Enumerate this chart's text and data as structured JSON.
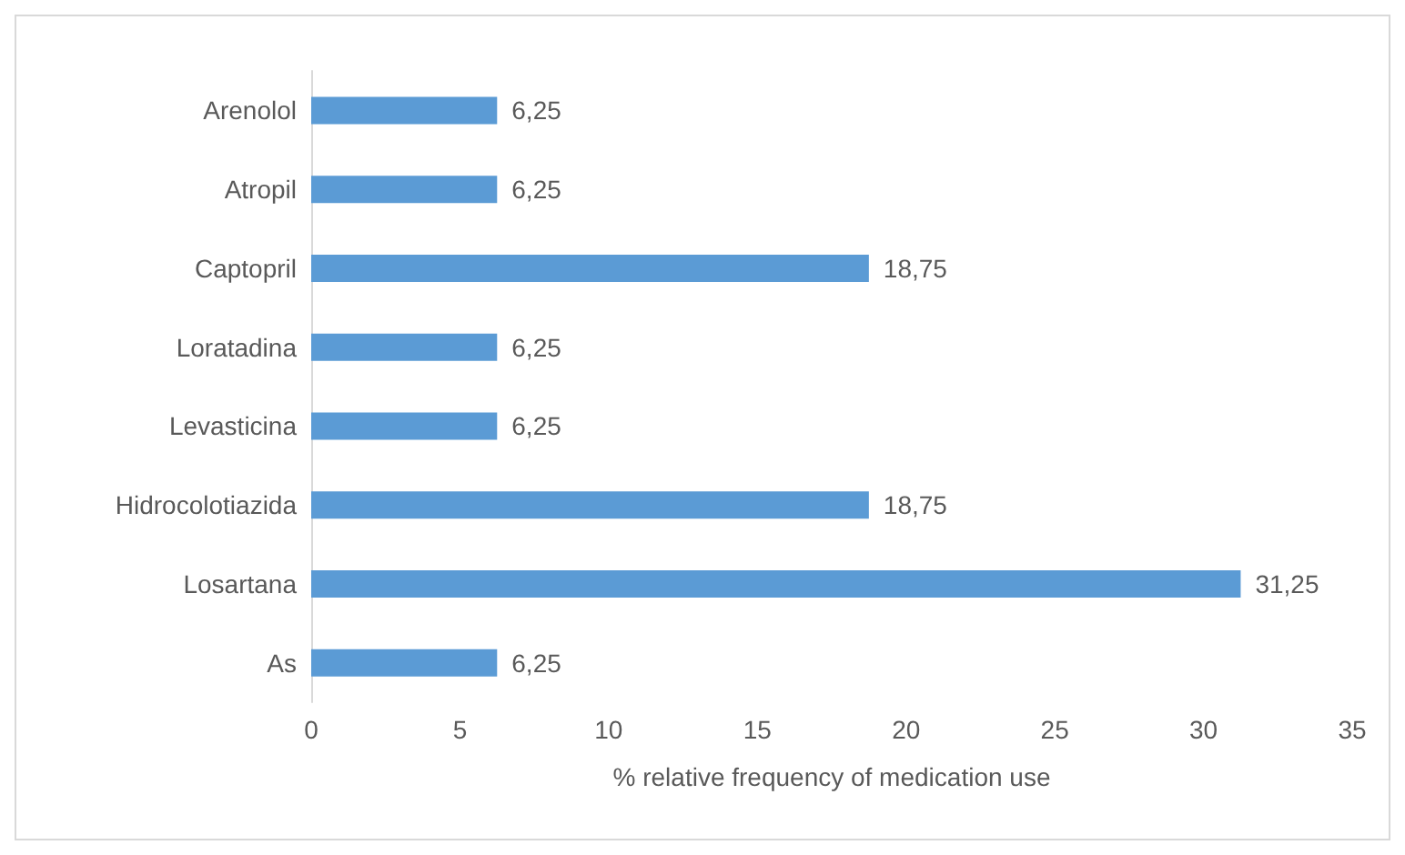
{
  "chart_data": {
    "type": "bar",
    "orientation": "horizontal",
    "categories": [
      "Arenolol",
      "Atropil",
      "Captopril",
      "Loratadina",
      "Levasticina",
      "Hidrocolotiazida",
      "Losartana",
      "As"
    ],
    "values": [
      6.25,
      6.25,
      18.75,
      6.25,
      6.25,
      18.75,
      31.25,
      6.25
    ],
    "value_labels": [
      "6,25",
      "6,25",
      "18,75",
      "6,25",
      "6,25",
      "18,75",
      "31,25",
      "6,25"
    ],
    "color": "#5b9bd5",
    "xlabel": "% relative frequency of medication use",
    "xlim": [
      0,
      35
    ],
    "xticks": [
      0,
      5,
      10,
      15,
      20,
      25,
      30,
      35
    ]
  }
}
